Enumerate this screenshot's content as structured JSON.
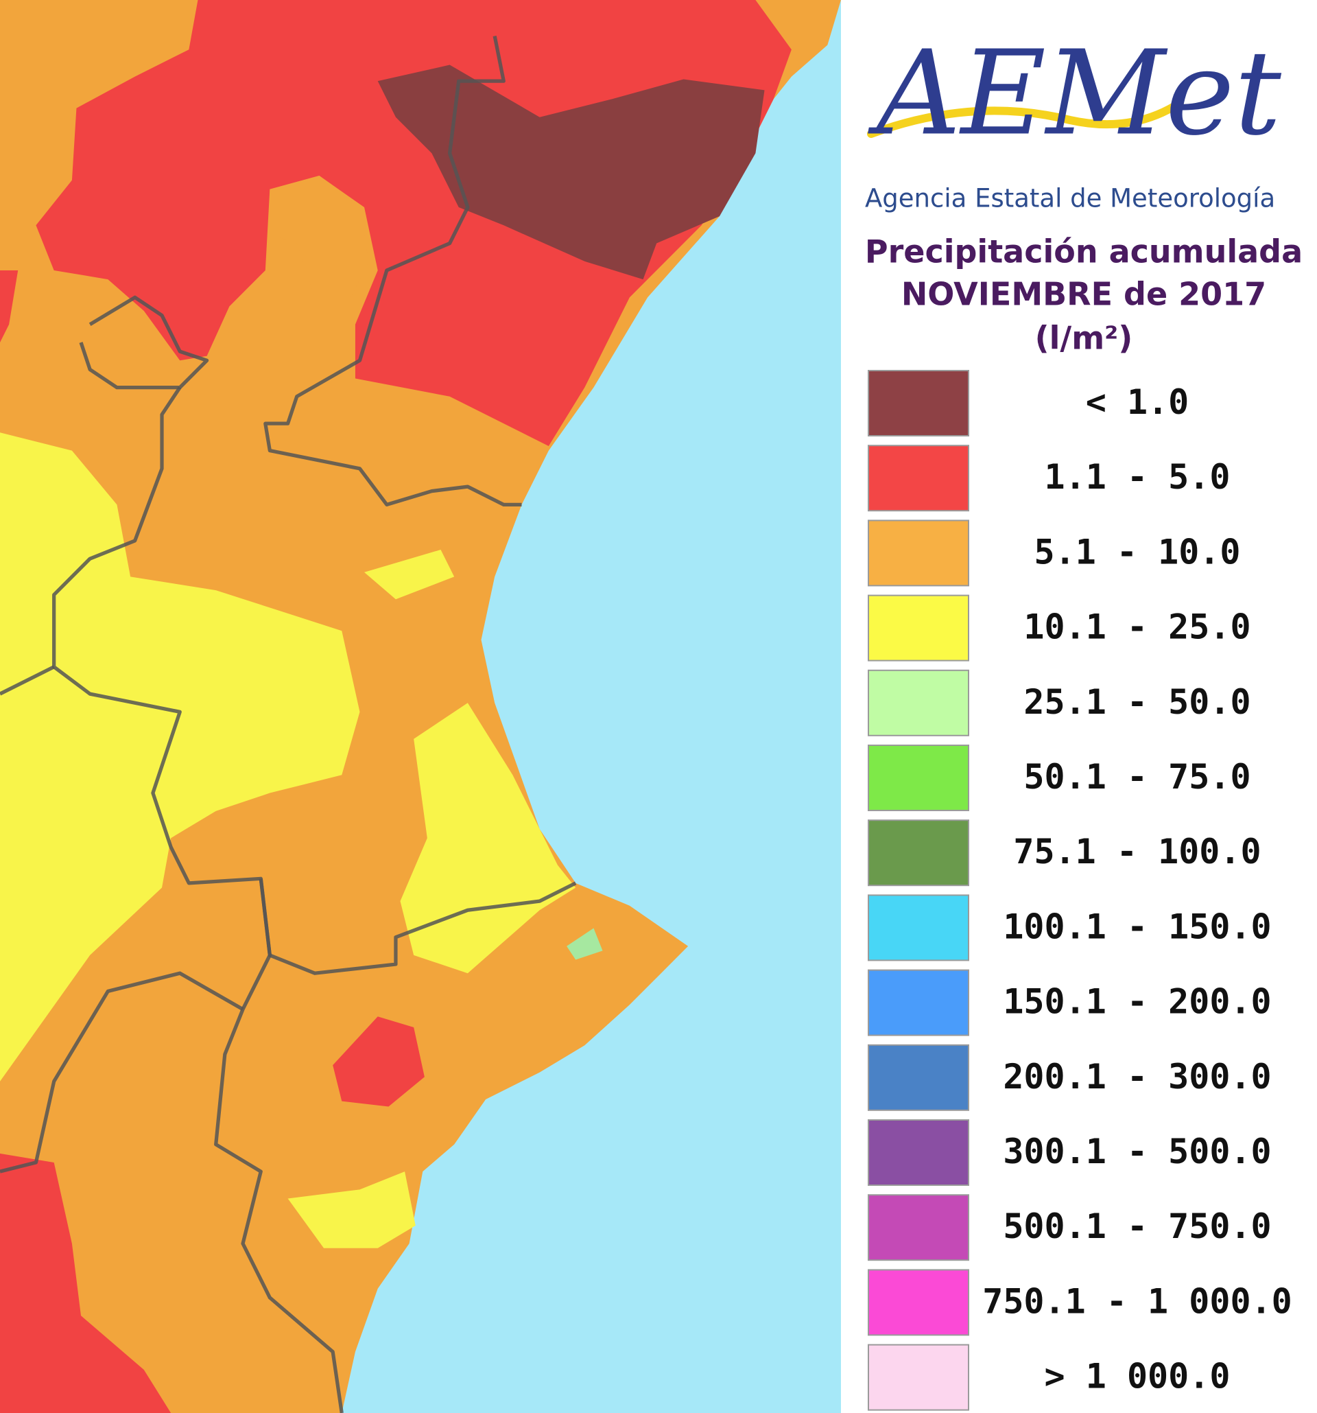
{
  "header": {
    "logo": "AEMet",
    "agency": "Agencia Estatal de Meteorología"
  },
  "title": {
    "line1": "Precipitación acumulada",
    "line2": "NOVIEMBRE de 2017",
    "unit": "(l/m²)"
  },
  "legend": {
    "items": [
      {
        "label": "< 1.0",
        "color": "#8e4145"
      },
      {
        "label": "1.1 - 5.0",
        "color": "#f34646"
      },
      {
        "label": "5.1 - 10.0",
        "color": "#f7b044"
      },
      {
        "label": "10.1 - 25.0",
        "color": "#fbfa46"
      },
      {
        "label": "25.1 - 50.0",
        "color": "#c0fca4"
      },
      {
        "label": "50.1 - 75.0",
        "color": "#7ee948"
      },
      {
        "label": "75.1 - 100.0",
        "color": "#6a9a4c"
      },
      {
        "label": "100.1 - 150.0",
        "color": "#48d6f6"
      },
      {
        "label": "150.1 - 200.0",
        "color": "#4a9cfa"
      },
      {
        "label": "200.1 - 300.0",
        "color": "#4a82c6"
      },
      {
        "label": "300.1 - 500.0",
        "color": "#8a4fa3"
      },
      {
        "label": "500.1 - 750.0",
        "color": "#c44ab6"
      },
      {
        "label": "750.1 - 1 000.0",
        "color": "#fb4ad6"
      },
      {
        "label": "> 1 000.0",
        "color": "#fcd6ee"
      }
    ]
  }
}
